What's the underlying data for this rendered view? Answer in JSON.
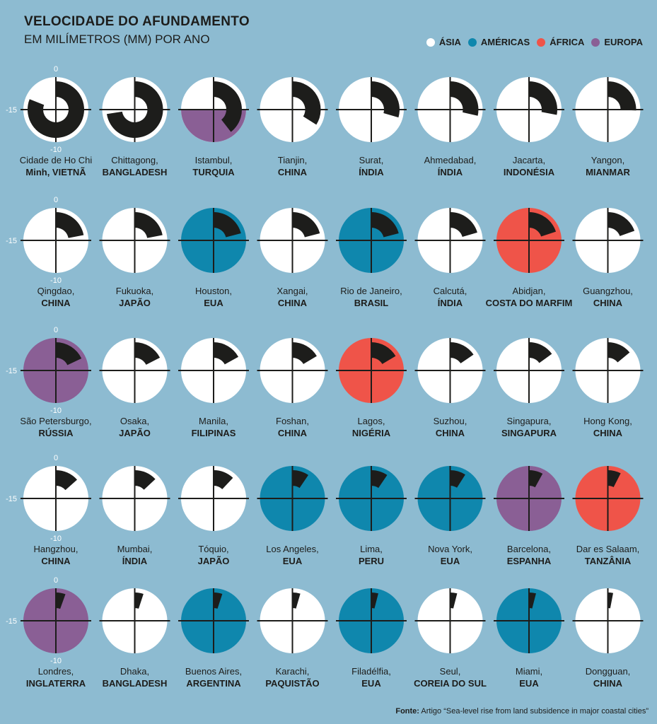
{
  "header": {
    "title": "VELOCIDADE DO AFUNDAMENTO",
    "subtitle": "EM MILÍMETROS (MM) POR ANO"
  },
  "legend": [
    {
      "label": "ÁSIA",
      "region": "asia"
    },
    {
      "label": "AMÉRICAS",
      "region": "americas"
    },
    {
      "label": "ÁFRICA",
      "region": "africa"
    },
    {
      "label": "EUROPA",
      "region": "europa"
    }
  ],
  "colors": {
    "asia": "#ffffff",
    "americas": "#0f87ad",
    "africa": "#ef5449",
    "europa": "#8a5f95",
    "bar": "#1d1d1b",
    "background": "#8dbbd1"
  },
  "source": {
    "label": "Fonte:",
    "text": "Artigo “Sea-level rise from land subsidence in major coastal cities”"
  },
  "chart_data": {
    "type": "radial_bar",
    "scale_max": 20,
    "axis_labels": {
      "top": "0",
      "left": "-15",
      "right": "-5",
      "bottom": "-10"
    },
    "cities": [
      {
        "name": "Cidade de Ho Chi",
        "name2": "Minh,",
        "country": "VIETNÃ",
        "value": 16.2,
        "region": "asia"
      },
      {
        "name": "Chittagong,",
        "name2": "",
        "country": "BANGLADESH",
        "value": 14.5,
        "region": "asia"
      },
      {
        "name": "Istambul,",
        "name2": "",
        "country": "TURQUIA",
        "value": 7.9,
        "region": "europa"
      },
      {
        "name": "Tianjin,",
        "name2": "",
        "country": "CHINA",
        "value": 6.8,
        "region": "asia"
      },
      {
        "name": "Surat,",
        "name2": "",
        "country": "ÍNDIA",
        "value": 5.9,
        "region": "asia"
      },
      {
        "name": "Ahmedabad,",
        "name2": "",
        "country": "ÍNDIA",
        "value": 5.7,
        "region": "asia"
      },
      {
        "name": "Jacarta,",
        "name2": "",
        "country": "INDONÉSIA",
        "value": 5.6,
        "region": "asia"
      },
      {
        "name": "Yangon,",
        "name2": "",
        "country": "MIANMAR",
        "value": 5.1,
        "region": "asia"
      },
      {
        "name": "Qingdao,",
        "name2": "",
        "country": "CHINA",
        "value": 4.4,
        "region": "asia"
      },
      {
        "name": "Fukuoka,",
        "name2": "",
        "country": "JAPÃO",
        "value": 4.4,
        "region": "asia"
      },
      {
        "name": "Houston,",
        "name2": "",
        "country": "EUA",
        "value": 4.2,
        "region": "americas"
      },
      {
        "name": "Xangai,",
        "name2": "",
        "country": "CHINA",
        "value": 4.2,
        "region": "asia"
      },
      {
        "name": "Rio de Janeiro,",
        "name2": "",
        "country": "BRASIL",
        "value": 4.2,
        "region": "americas"
      },
      {
        "name": "Calcutá,",
        "name2": "",
        "country": "ÍNDIA",
        "value": 4.1,
        "region": "asia"
      },
      {
        "name": "Abidjan,",
        "name2": "",
        "country": "COSTA DO MARFIM",
        "value": 4.0,
        "region": "africa"
      },
      {
        "name": "Guangzhou,",
        "name2": "",
        "country": "CHINA",
        "value": 3.9,
        "region": "asia"
      },
      {
        "name": "São Petersburgo,",
        "name2": "",
        "country": "RÚSSIA",
        "value": 3.6,
        "region": "europa"
      },
      {
        "name": "Osaka,",
        "name2": "",
        "country": "JAPÃO",
        "value": 3.5,
        "region": "asia"
      },
      {
        "name": "Manila,",
        "name2": "",
        "country": "FILIPINAS",
        "value": 3.4,
        "region": "asia"
      },
      {
        "name": "Foshan,",
        "name2": "",
        "country": "CHINA",
        "value": 3.3,
        "region": "asia"
      },
      {
        "name": "Lagos,",
        "name2": "",
        "country": "NIGÉRIA",
        "value": 3.3,
        "region": "africa"
      },
      {
        "name": "Suzhou,",
        "name2": "",
        "country": "CHINA",
        "value": 3.1,
        "region": "asia"
      },
      {
        "name": "Singapura,",
        "name2": "",
        "country": "SINGAPURA",
        "value": 3.0,
        "region": "asia"
      },
      {
        "name": "Hong Kong,",
        "name2": "",
        "country": "CHINA",
        "value": 2.8,
        "region": "asia"
      },
      {
        "name": "Hangzhou,",
        "name2": "",
        "country": "CHINA",
        "value": 2.7,
        "region": "asia"
      },
      {
        "name": "Mumbai,",
        "name2": "",
        "country": "ÍNDIA",
        "value": 2.6,
        "region": "asia"
      },
      {
        "name": "Tóquio,",
        "name2": "",
        "country": "JAPÃO",
        "value": 2.4,
        "region": "asia"
      },
      {
        "name": "Los Angeles,",
        "name2": "",
        "country": "EUA",
        "value": 1.9,
        "region": "americas"
      },
      {
        "name": "Lima,",
        "name2": "",
        "country": "PERU",
        "value": 1.9,
        "region": "americas"
      },
      {
        "name": "Nova York,",
        "name2": "",
        "country": "EUA",
        "value": 1.8,
        "region": "americas"
      },
      {
        "name": "Barcelona,",
        "name2": "",
        "country": "ESPANHA",
        "value": 1.6,
        "region": "europa"
      },
      {
        "name": "Dar es Salaam,",
        "name2": "",
        "country": "TANZÂNIA",
        "value": 1.5,
        "region": "africa"
      },
      {
        "name": "Londres,",
        "name2": "",
        "country": "INGLATERRA",
        "value": 1.1,
        "region": "europa"
      },
      {
        "name": "Dhaka,",
        "name2": "",
        "country": "BANGLADESH",
        "value": 1.0,
        "region": "asia"
      },
      {
        "name": "Buenos Aires,",
        "name2": "",
        "country": "ARGENTINA",
        "value": 1.0,
        "region": "americas"
      },
      {
        "name": "Karachi,",
        "name2": "",
        "country": "PAQUISTÃO",
        "value": 0.9,
        "region": "asia"
      },
      {
        "name": "Filadélfia,",
        "name2": "",
        "country": "EUA",
        "value": 0.8,
        "region": "americas"
      },
      {
        "name": "Seul,",
        "name2": "",
        "country": "COREIA DO SUL",
        "value": 0.8,
        "region": "asia"
      },
      {
        "name": "Miami,",
        "name2": "",
        "country": "EUA",
        "value": 0.8,
        "region": "americas"
      },
      {
        "name": "Dongguan,",
        "name2": "",
        "country": "CHINA",
        "value": 0.6,
        "region": "asia"
      }
    ]
  }
}
